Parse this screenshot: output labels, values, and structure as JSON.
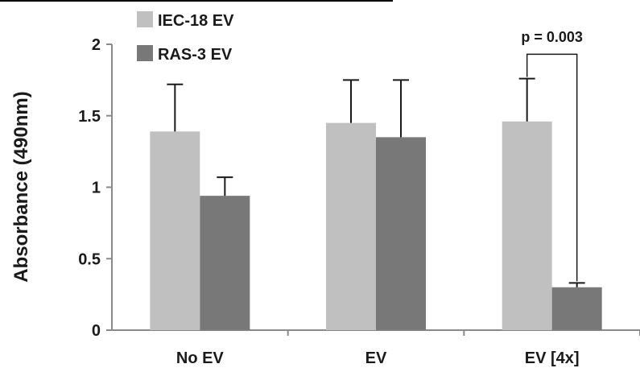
{
  "chart_data": {
    "type": "bar",
    "categories": [
      "No EV",
      "EV",
      "EV [4x]"
    ],
    "series": [
      {
        "name": "IEC-18 EV",
        "color": "#c0c0c0",
        "values": [
          1.39,
          1.45,
          1.46
        ],
        "error": [
          0.33,
          0.3,
          0.3
        ]
      },
      {
        "name": "RAS-3 EV",
        "color": "#787878",
        "values": [
          0.94,
          1.35,
          0.3
        ],
        "error": [
          0.13,
          0.4,
          0.03
        ]
      }
    ],
    "ylabel": "Absorbance (490nm)",
    "xlabel": "",
    "ylim": [
      0,
      2
    ],
    "yticks": [
      "0",
      "0.5",
      "1",
      "1.5",
      "2"
    ],
    "grid": false,
    "legend_position": "top-left",
    "annotations": [
      {
        "text": "p = 0.003",
        "category": "EV [4x]",
        "between_series": [
          "IEC-18 EV",
          "RAS-3 EV"
        ]
      }
    ]
  }
}
